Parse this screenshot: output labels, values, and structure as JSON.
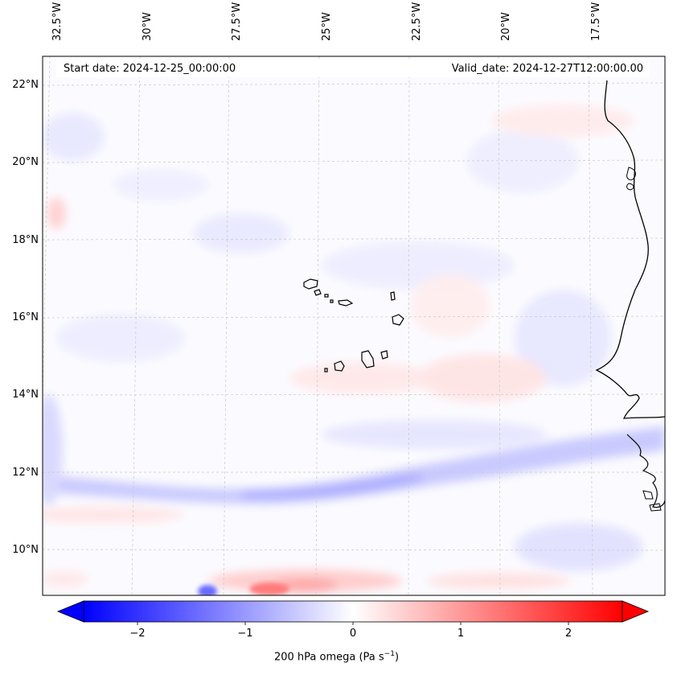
{
  "map": {
    "start_date": "Start date: 2024-12-25_00:00:00",
    "valid_date": "Valid_date: 2024-12-27T12:00:00.00",
    "lon_labels": [
      "32.5°W",
      "30°W",
      "27.5°W",
      "25°W",
      "22.5°W",
      "20°W",
      "17.5°W"
    ],
    "lat_labels": [
      "22°N",
      "20°N",
      "18°N",
      "16°N",
      "14°N",
      "12°N",
      "10°N"
    ],
    "field": "200 hPa omega",
    "region": "Cabo Verde islands and West African coast"
  },
  "colorbar": {
    "label": "200 hPa omega (Pa s",
    "label_unit_sup": "−1",
    "label_close": ")",
    "ticks": [
      "−2",
      "−1",
      "0",
      "1",
      "2"
    ],
    "min": -2.5,
    "max": 2.5,
    "colors": {
      "low": "#0000ff",
      "mid": "#ffffff",
      "high": "#ff0000"
    }
  }
}
